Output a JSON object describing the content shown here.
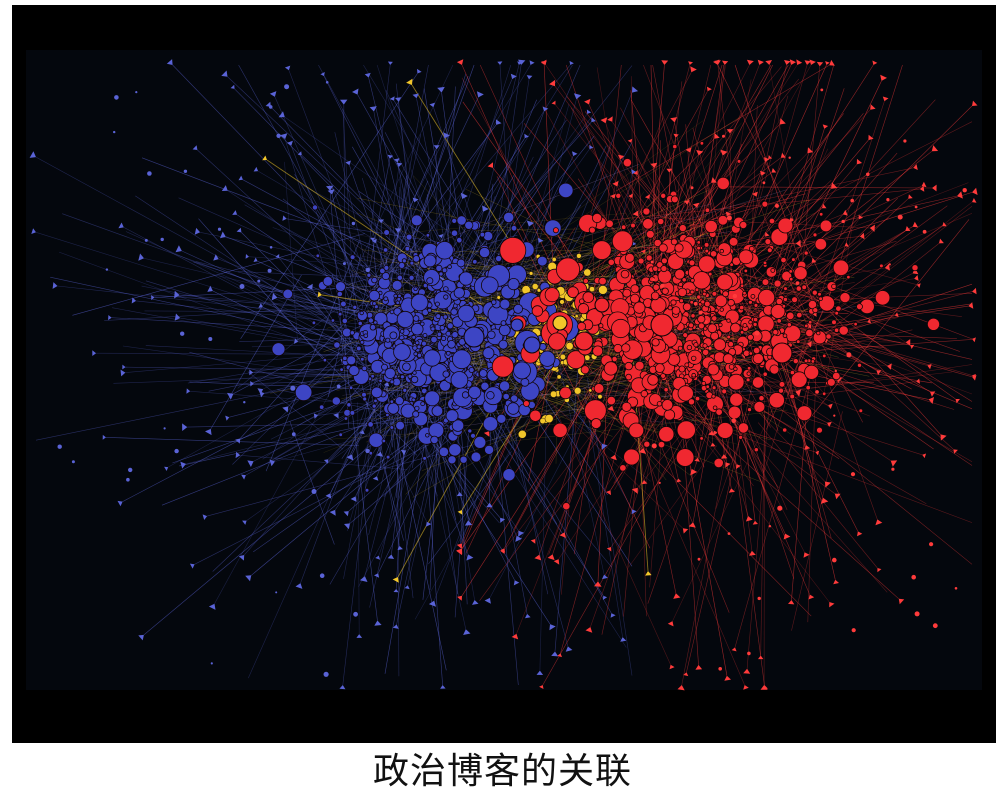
{
  "figure": {
    "caption": "政治博客的关联",
    "colors": {
      "background": "#000000",
      "inner_panel": "#04070d",
      "cluster_a": "#3d45c4",
      "cluster_a_edge": "#5a63d6",
      "cluster_b": "#f02830",
      "cluster_b_edge": "#ff3b3b",
      "bridge": "#f2c62a",
      "bridge_alt": "#c69be6",
      "node_stroke": "#120608"
    },
    "clusters": [
      {
        "name": "cluster-a-blue",
        "color_key": "cluster_a"
      },
      {
        "name": "cluster-b-red",
        "color_key": "cluster_b"
      },
      {
        "name": "bridge-yellow",
        "color_key": "bridge"
      }
    ]
  }
}
